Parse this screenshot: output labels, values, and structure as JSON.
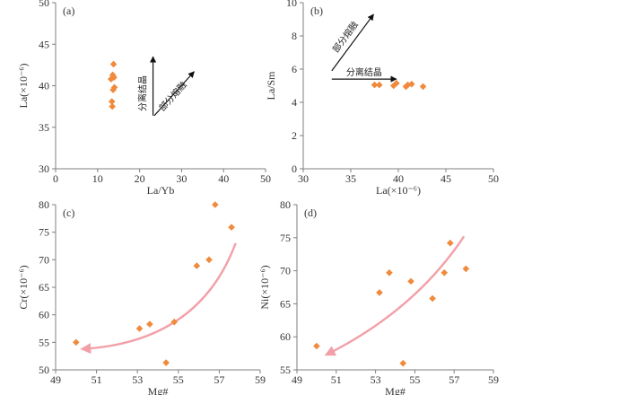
{
  "colors": {
    "marker": "#f08a3c",
    "axis": "#7f7f7f",
    "trend": "#f2a0a8",
    "arrow": "#111111"
  },
  "chart_data": [
    {
      "id": "a",
      "type": "scatter",
      "panel_label": "(a)",
      "xlabel": "La/Yb",
      "ylabel": "La(×10⁻⁶)",
      "xlim": [
        0,
        50
      ],
      "ylim": [
        30,
        50
      ],
      "xticks": [
        "0",
        "10",
        "20",
        "30",
        "40",
        "50"
      ],
      "yticks": [
        "30",
        "35",
        "40",
        "45",
        "50"
      ],
      "points": [
        {
          "x": 13.8,
          "y": 42.6
        },
        {
          "x": 13.6,
          "y": 41.3
        },
        {
          "x": 13.2,
          "y": 40.8
        },
        {
          "x": 13.9,
          "y": 41.0
        },
        {
          "x": 14.0,
          "y": 39.8
        },
        {
          "x": 13.7,
          "y": 39.5
        },
        {
          "x": 13.4,
          "y": 38.1
        },
        {
          "x": 13.5,
          "y": 37.5
        }
      ],
      "arrows": [
        {
          "label": "分离结晶",
          "from": [
            23.2,
            36.4
          ],
          "to": [
            23.2,
            43.5
          ],
          "label_orientation": "vertical"
        },
        {
          "label": "部分熔融",
          "from": [
            23.5,
            36.4
          ],
          "to": [
            33.0,
            41.7
          ],
          "label_orientation": "diagonal"
        }
      ]
    },
    {
      "id": "b",
      "type": "scatter",
      "panel_label": "(b)",
      "xlabel": "La(×10⁻⁶)",
      "ylabel": "La/Sm",
      "xlim": [
        30,
        50
      ],
      "ylim": [
        0,
        10
      ],
      "xticks": [
        "30",
        "35",
        "40",
        "45",
        "50"
      ],
      "yticks": [
        "0",
        "2",
        "4",
        "6",
        "8",
        "10"
      ],
      "points": [
        {
          "x": 37.5,
          "y": 5.05
        },
        {
          "x": 38.0,
          "y": 5.05
        },
        {
          "x": 39.5,
          "y": 5.0
        },
        {
          "x": 39.8,
          "y": 5.15
        },
        {
          "x": 40.8,
          "y": 4.95
        },
        {
          "x": 41.0,
          "y": 5.05
        },
        {
          "x": 41.4,
          "y": 5.1
        },
        {
          "x": 42.6,
          "y": 4.95
        }
      ],
      "arrows": [
        {
          "label": "部分熔融",
          "from": [
            33.0,
            5.9
          ],
          "to": [
            37.4,
            9.3
          ],
          "label_orientation": "diagonal"
        },
        {
          "label": "分离结晶",
          "from": [
            33.0,
            5.4
          ],
          "to": [
            39.8,
            5.4
          ],
          "label_orientation": "horizontal"
        }
      ]
    },
    {
      "id": "c",
      "type": "scatter",
      "panel_label": "(c)",
      "xlabel": "Mg#",
      "ylabel": "Cr(×10⁻⁶)",
      "xlim": [
        49,
        59
      ],
      "ylim": [
        50,
        80
      ],
      "xticks": [
        "49",
        "51",
        "53",
        "55",
        "57",
        "59"
      ],
      "yticks": [
        "50",
        "55",
        "60",
        "65",
        "70",
        "75",
        "80"
      ],
      "points": [
        {
          "x": 50.0,
          "y": 55.0
        },
        {
          "x": 53.1,
          "y": 57.5
        },
        {
          "x": 53.6,
          "y": 58.3
        },
        {
          "x": 54.4,
          "y": 51.3
        },
        {
          "x": 54.8,
          "y": 58.7
        },
        {
          "x": 55.9,
          "y": 68.9
        },
        {
          "x": 56.5,
          "y": 70.0
        },
        {
          "x": 56.8,
          "y": 80.0
        },
        {
          "x": 57.6,
          "y": 75.9
        }
      ],
      "trend": {
        "from": [
          57.8,
          73.0
        ],
        "ctrl": [
          56.0,
          55.0
        ],
        "to": [
          50.3,
          53.8
        ]
      }
    },
    {
      "id": "d",
      "type": "scatter",
      "panel_label": "(d)",
      "xlabel": "Mg#",
      "ylabel": "Ni(×10⁻⁶)",
      "xlim": [
        49,
        59
      ],
      "ylim": [
        55,
        80
      ],
      "xticks": [
        "49",
        "51",
        "53",
        "55",
        "57",
        "59"
      ],
      "yticks": [
        "55",
        "60",
        "65",
        "70",
        "75",
        "80"
      ],
      "points": [
        {
          "x": 50.0,
          "y": 58.6
        },
        {
          "x": 53.2,
          "y": 66.7
        },
        {
          "x": 53.7,
          "y": 69.7
        },
        {
          "x": 54.4,
          "y": 56.0
        },
        {
          "x": 54.8,
          "y": 68.4
        },
        {
          "x": 55.9,
          "y": 65.8
        },
        {
          "x": 56.5,
          "y": 69.7
        },
        {
          "x": 56.8,
          "y": 74.2
        },
        {
          "x": 57.6,
          "y": 70.3
        }
      ],
      "trend": {
        "from": [
          57.5,
          75.2
        ],
        "ctrl": [
          55.0,
          64.0
        ],
        "to": [
          50.5,
          57.3
        ]
      }
    }
  ]
}
